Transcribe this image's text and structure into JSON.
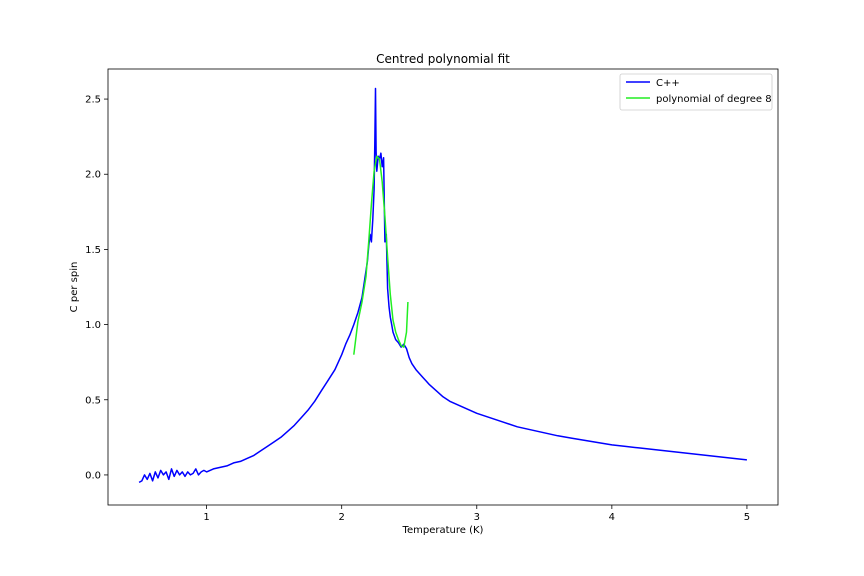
{
  "chart_data": {
    "type": "line",
    "title": "Centred polynomial fit",
    "xlabel": "Temperature (K)",
    "ylabel": "C per spin",
    "xlim": [
      0.27,
      5.23
    ],
    "ylim": [
      -0.2,
      2.7
    ],
    "x_ticks": [
      1,
      2,
      3,
      4,
      5
    ],
    "y_ticks": [
      0.0,
      0.5,
      1.0,
      1.5,
      2.0,
      2.5
    ],
    "x_tick_labels": [
      "1",
      "2",
      "3",
      "4",
      "5"
    ],
    "y_tick_labels": [
      "0.0",
      "0.5",
      "1.0",
      "1.5",
      "2.0",
      "2.5"
    ],
    "grid": false,
    "legend_position": "top-right",
    "series": [
      {
        "name": "C++",
        "color": "#0000ff",
        "x": [
          0.5,
          0.52,
          0.54,
          0.56,
          0.58,
          0.6,
          0.62,
          0.64,
          0.66,
          0.68,
          0.7,
          0.72,
          0.74,
          0.76,
          0.78,
          0.8,
          0.82,
          0.84,
          0.86,
          0.88,
          0.9,
          0.92,
          0.94,
          0.96,
          0.98,
          1.0,
          1.05,
          1.1,
          1.15,
          1.2,
          1.25,
          1.3,
          1.35,
          1.4,
          1.45,
          1.5,
          1.55,
          1.6,
          1.65,
          1.7,
          1.75,
          1.8,
          1.85,
          1.9,
          1.95,
          2.0,
          2.03,
          2.06,
          2.09,
          2.12,
          2.15,
          2.17,
          2.19,
          2.2,
          2.21,
          2.22,
          2.23,
          2.24,
          2.245,
          2.25,
          2.255,
          2.26,
          2.27,
          2.28,
          2.29,
          2.3,
          2.31,
          2.32,
          2.33,
          2.34,
          2.35,
          2.36,
          2.37,
          2.38,
          2.4,
          2.42,
          2.44,
          2.46,
          2.48,
          2.5,
          2.52,
          2.55,
          2.6,
          2.65,
          2.7,
          2.75,
          2.8,
          2.9,
          3.0,
          3.1,
          3.2,
          3.3,
          3.4,
          3.5,
          3.6,
          3.7,
          3.8,
          3.9,
          4.0,
          4.1,
          4.2,
          4.3,
          4.4,
          4.5,
          4.6,
          4.7,
          4.8,
          4.9,
          5.0
        ],
        "values": [
          -0.05,
          -0.04,
          0.0,
          -0.03,
          0.01,
          -0.04,
          0.02,
          -0.02,
          0.03,
          0.0,
          0.02,
          -0.03,
          0.04,
          -0.01,
          0.03,
          0.0,
          0.02,
          -0.01,
          0.02,
          0.0,
          0.01,
          0.04,
          0.0,
          0.02,
          0.03,
          0.02,
          0.04,
          0.05,
          0.06,
          0.08,
          0.09,
          0.11,
          0.13,
          0.16,
          0.19,
          0.22,
          0.25,
          0.29,
          0.33,
          0.38,
          0.43,
          0.49,
          0.56,
          0.63,
          0.7,
          0.8,
          0.87,
          0.93,
          1.0,
          1.08,
          1.18,
          1.3,
          1.42,
          1.52,
          1.6,
          1.55,
          1.7,
          1.9,
          2.2,
          2.57,
          2.15,
          2.02,
          2.12,
          2.1,
          2.14,
          2.05,
          2.11,
          1.55,
          1.6,
          1.24,
          1.12,
          1.05,
          1.0,
          0.95,
          0.9,
          0.88,
          0.85,
          0.87,
          0.84,
          0.78,
          0.74,
          0.7,
          0.65,
          0.6,
          0.56,
          0.52,
          0.49,
          0.45,
          0.41,
          0.38,
          0.35,
          0.32,
          0.3,
          0.28,
          0.26,
          0.245,
          0.23,
          0.215,
          0.2,
          0.19,
          0.18,
          0.17,
          0.16,
          0.15,
          0.14,
          0.13,
          0.12,
          0.11,
          0.1
        ]
      },
      {
        "name": "polynomial of degree 8",
        "color": "#22ee22",
        "x": [
          2.09,
          2.12,
          2.15,
          2.18,
          2.2,
          2.22,
          2.24,
          2.26,
          2.28,
          2.3,
          2.32,
          2.34,
          2.36,
          2.38,
          2.4,
          2.42,
          2.44,
          2.46,
          2.48,
          2.49
        ],
        "values": [
          0.8,
          1.02,
          1.15,
          1.32,
          1.55,
          1.8,
          2.02,
          2.12,
          2.1,
          1.95,
          1.72,
          1.45,
          1.2,
          1.03,
          0.95,
          0.9,
          0.86,
          0.85,
          0.95,
          1.15
        ]
      }
    ]
  }
}
